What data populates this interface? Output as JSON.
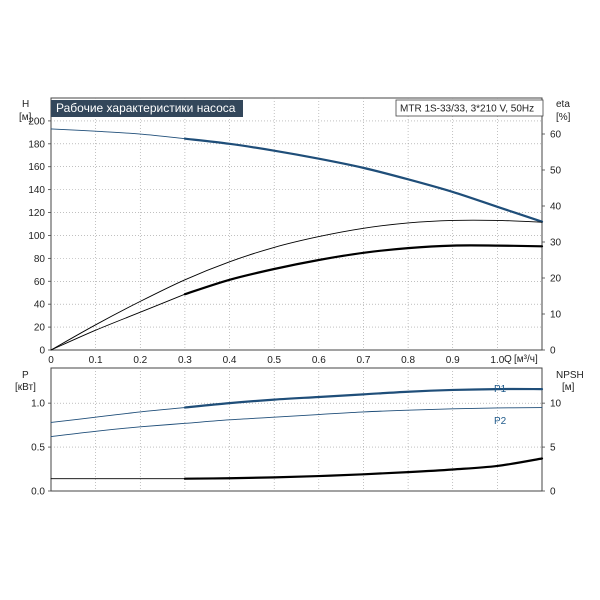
{
  "chart_data": [
    {
      "type": "line",
      "title": "Рабочие характеристики насоса",
      "subtitle": "MTR 1S-33/33, 3*210 V, 50Hz",
      "ylabel_left": "H",
      "ylabel_left_unit": "[м]",
      "ylabel_right": "eta",
      "ylabel_right_unit": "[%]",
      "xlabel": "Q",
      "xlabel_unit": "[м³/ч]",
      "xlim": [
        0,
        1.1
      ],
      "ylim_left": [
        0,
        220
      ],
      "ylim_right": [
        0,
        70
      ],
      "x_ticks": [
        "0",
        "0.1",
        "0.2",
        "0.3",
        "0.4",
        "0.5",
        "0.6",
        "0.7",
        "0.8",
        "0.9",
        "1.0"
      ],
      "y_ticks_left": [
        "0",
        "20",
        "40",
        "60",
        "80",
        "100",
        "120",
        "140",
        "160",
        "180",
        "200"
      ],
      "y_ticks_right": [
        "0",
        "10",
        "20",
        "30",
        "40",
        "50",
        "60"
      ],
      "grid": true,
      "series": [
        {
          "axis": "left",
          "color": "#1f4e79",
          "style": "thin",
          "x": [
            0,
            0.1,
            0.2,
            0.3
          ],
          "y": [
            193,
            191,
            188.5,
            184.5
          ]
        },
        {
          "axis": "left",
          "color": "#1f4e79",
          "style": "thick",
          "x": [
            0.3,
            0.4,
            0.5,
            0.6,
            0.7,
            0.8,
            0.9,
            1.0,
            1.1
          ],
          "y": [
            184.5,
            180,
            174,
            167,
            159,
            149,
            138,
            125,
            112
          ]
        },
        {
          "axis": "right",
          "color": "#000000",
          "style": "thin",
          "x": [
            0,
            0.1,
            0.2,
            0.3,
            0.4,
            0.5,
            0.6,
            0.7,
            0.8,
            0.9,
            1.0,
            1.1
          ],
          "y": [
            0,
            7,
            13.5,
            19.5,
            24.5,
            28.5,
            31.5,
            33.8,
            35.3,
            36,
            36,
            35.5
          ]
        },
        {
          "axis": "right",
          "color": "#000000",
          "style": "thin",
          "x": [
            0,
            0.1,
            0.2,
            0.3
          ],
          "y": [
            0,
            5.5,
            10.5,
            15.5
          ]
        },
        {
          "axis": "right",
          "color": "#000000",
          "style": "thick",
          "x": [
            0.3,
            0.4,
            0.5,
            0.6,
            0.7,
            0.8,
            0.9,
            1.0,
            1.1
          ],
          "y": [
            15.5,
            19.5,
            22.5,
            25,
            27,
            28.3,
            29,
            29,
            28.8
          ]
        }
      ]
    },
    {
      "type": "line",
      "ylabel_left": "P",
      "ylabel_left_unit": "[кВт]",
      "ylabel_right": "NPSH",
      "ylabel_right_unit": "[м]",
      "xlim": [
        0,
        1.1
      ],
      "ylim_left": [
        0,
        1.4
      ],
      "ylim_right": [
        0,
        14
      ],
      "y_ticks_left": [
        "0.0",
        "0.5",
        "1.0"
      ],
      "y_ticks_right": [
        "0",
        "5",
        "10"
      ],
      "grid": true,
      "annotations": [
        "P1",
        "P2"
      ],
      "series": [
        {
          "name": "P1",
          "axis": "left",
          "color": "#1f4e79",
          "style": "thin",
          "x": [
            0,
            0.1,
            0.2,
            0.3
          ],
          "y": [
            0.78,
            0.84,
            0.9,
            0.95
          ]
        },
        {
          "name": "P1",
          "axis": "left",
          "color": "#1f4e79",
          "style": "thick",
          "x": [
            0.3,
            0.4,
            0.5,
            0.6,
            0.7,
            0.8,
            0.9,
            1.0,
            1.1
          ],
          "y": [
            0.95,
            1.0,
            1.04,
            1.07,
            1.1,
            1.13,
            1.15,
            1.16,
            1.16
          ]
        },
        {
          "name": "P2",
          "axis": "left",
          "color": "#1f4e79",
          "style": "thin",
          "x": [
            0,
            0.1,
            0.2,
            0.3,
            0.4,
            0.5,
            0.6,
            0.7,
            0.8,
            0.9,
            1.0,
            1.1
          ],
          "y": [
            0.62,
            0.68,
            0.73,
            0.77,
            0.81,
            0.84,
            0.87,
            0.9,
            0.92,
            0.935,
            0.945,
            0.95
          ]
        },
        {
          "axis": "right",
          "color": "#000000",
          "style": "thin",
          "x": [
            0,
            0.1,
            0.2,
            0.3
          ],
          "y": [
            1.4,
            1.4,
            1.4,
            1.4
          ]
        },
        {
          "axis": "right",
          "color": "#000000",
          "style": "thick",
          "x": [
            0.3,
            0.4,
            0.5,
            0.6,
            0.7,
            0.8,
            0.9,
            1.0,
            1.1
          ],
          "y": [
            1.4,
            1.45,
            1.55,
            1.7,
            1.9,
            2.15,
            2.45,
            2.85,
            3.7
          ]
        }
      ]
    }
  ]
}
